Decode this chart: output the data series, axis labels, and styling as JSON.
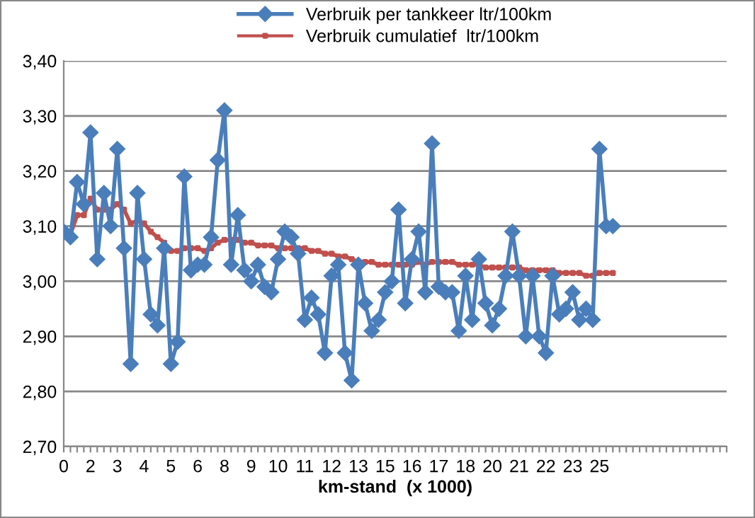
{
  "chart_data": {
    "type": "line",
    "xlabel": "km-stand  (x 1000)",
    "categories": [
      "0",
      null,
      null,
      null,
      "2",
      null,
      null,
      null,
      "3",
      null,
      null,
      null,
      "4",
      null,
      null,
      null,
      "5",
      null,
      null,
      null,
      "6",
      null,
      null,
      null,
      "8",
      null,
      null,
      null,
      "9",
      null,
      null,
      null,
      "10",
      null,
      null,
      null,
      "11",
      null,
      null,
      null,
      "12",
      null,
      null,
      null,
      "13",
      null,
      null,
      null,
      "15",
      null,
      null,
      null,
      "16",
      null,
      null,
      null,
      "17",
      null,
      null,
      null,
      "18",
      null,
      null,
      null,
      "20",
      null,
      null,
      null,
      "21",
      null,
      null,
      null,
      "22",
      null,
      null,
      null,
      "23",
      null,
      null,
      null,
      "25",
      null,
      null,
      null,
      null,
      null,
      null,
      null,
      null,
      null,
      null,
      null,
      null,
      null,
      null,
      null,
      null,
      null,
      null,
      null
    ],
    "series": [
      {
        "name": "Verbruik per tankkeer ltr/100km",
        "color": "#4a7ebb",
        "marker": "diamond",
        "values": [
          3.09,
          3.08,
          3.18,
          3.14,
          3.27,
          3.04,
          3.16,
          3.1,
          3.24,
          3.06,
          2.85,
          3.16,
          3.04,
          2.94,
          2.92,
          3.06,
          2.85,
          2.89,
          3.19,
          3.02,
          3.03,
          3.03,
          3.08,
          3.22,
          3.31,
          3.03,
          3.12,
          3.02,
          3.0,
          3.03,
          2.99,
          2.98,
          3.04,
          3.09,
          3.08,
          3.05,
          2.93,
          2.97,
          2.94,
          2.87,
          3.01,
          3.03,
          2.87,
          2.82,
          3.03,
          2.96,
          2.91,
          2.93,
          2.98,
          3.0,
          3.13,
          2.96,
          3.04,
          3.09,
          2.98,
          3.25,
          2.99,
          2.98,
          2.98,
          2.91,
          3.01,
          2.93,
          3.04,
          2.96,
          2.92,
          2.95,
          3.01,
          3.09,
          3.01,
          2.9,
          3.01,
          2.9,
          2.87,
          3.01,
          2.94,
          2.95,
          2.98,
          2.93,
          2.95,
          2.93,
          3.24,
          3.1,
          3.1,
          null,
          null,
          null,
          null,
          null,
          null,
          null,
          null,
          null,
          null,
          null,
          null,
          null,
          null,
          null,
          null,
          null
        ]
      },
      {
        "name": "Verbruik cumulatief  ltr/100km",
        "color": "#c0504d",
        "marker": "square",
        "values": [
          3.09,
          3.085,
          3.12,
          3.12,
          3.15,
          3.13,
          3.13,
          3.13,
          3.14,
          3.13,
          3.105,
          3.11,
          3.105,
          3.09,
          3.08,
          3.07,
          3.055,
          3.055,
          3.06,
          3.06,
          3.06,
          3.055,
          3.06,
          3.07,
          3.075,
          3.075,
          3.075,
          3.07,
          3.07,
          3.065,
          3.065,
          3.065,
          3.06,
          3.06,
          3.06,
          3.06,
          3.06,
          3.055,
          3.055,
          3.05,
          3.05,
          3.045,
          3.045,
          3.04,
          3.035,
          3.035,
          3.035,
          3.03,
          3.03,
          3.03,
          3.03,
          3.03,
          3.03,
          3.035,
          3.03,
          3.035,
          3.035,
          3.035,
          3.035,
          3.03,
          3.03,
          3.03,
          3.03,
          3.025,
          3.025,
          3.025,
          3.025,
          3.025,
          3.025,
          3.02,
          3.02,
          3.02,
          3.02,
          3.02,
          3.015,
          3.015,
          3.015,
          3.015,
          3.01,
          3.01,
          3.015,
          3.015,
          3.015,
          null,
          null,
          null,
          null,
          null,
          null,
          null,
          null,
          null,
          null,
          null,
          null,
          null,
          null,
          null,
          null,
          null
        ]
      }
    ],
    "ylim": [
      2.7,
      3.4
    ],
    "yticks": [
      {
        "value": 2.7,
        "label": "2,70"
      },
      {
        "value": 2.8,
        "label": "2,80"
      },
      {
        "value": 2.9,
        "label": "2,90"
      },
      {
        "value": 3.0,
        "label": "3,00"
      },
      {
        "value": 3.1,
        "label": "3,10"
      },
      {
        "value": 3.2,
        "label": "3,20"
      },
      {
        "value": 3.3,
        "label": "3,30"
      },
      {
        "value": 3.4,
        "label": "3,40"
      }
    ],
    "grid": "y",
    "legend": "top",
    "line_style": "solid"
  }
}
